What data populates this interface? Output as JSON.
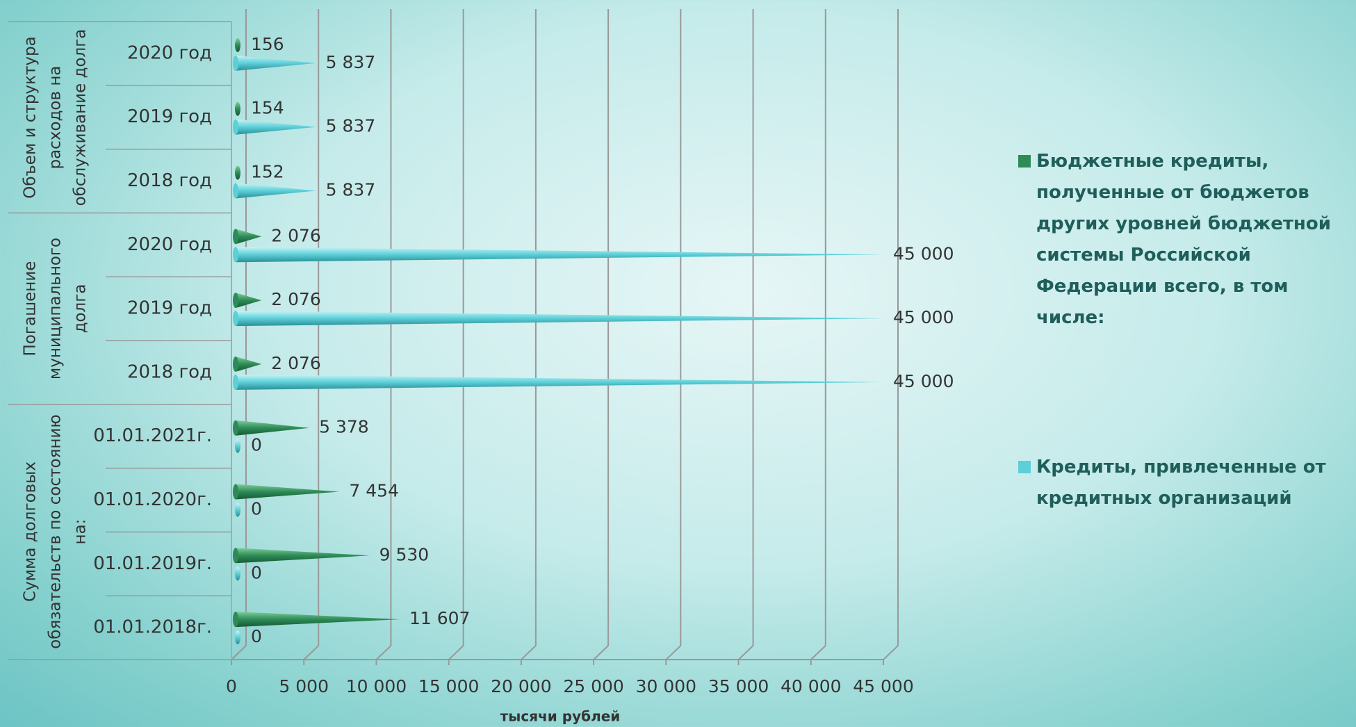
{
  "chart_data": {
    "type": "cone-bar",
    "x_label": "тысячи рублей",
    "groups": [
      {
        "label": "Сумма долговых обязательств по состоянию на:",
        "categories": [
          "01.01.2018г.",
          "01.01.2019г.",
          "01.01.2020г.",
          "01.01.2021г."
        ]
      },
      {
        "label": "Погашение муниципального долга",
        "categories": [
          "2018 год",
          "2019 год",
          "2020 год"
        ]
      },
      {
        "label": "Объем и структура расходов на обслуживание долга",
        "categories": [
          "2018 год",
          "2019 год",
          "2020 год"
        ]
      }
    ],
    "series": [
      {
        "name": "Бюджетные кредиты, полученные от бюджетов других уровней бюджетной системы Российской Федерации всего, в том числе:",
        "color": "#2e8b57",
        "values": [
          11607,
          9530,
          7454,
          5378,
          2076,
          2076,
          2076,
          152,
          154,
          156
        ],
        "value_labels": [
          "11 607",
          "9 530",
          "7 454",
          "5 378",
          "2 076",
          "2 076",
          "2 076",
          "152",
          "154",
          "156"
        ]
      },
      {
        "name": "Кредиты, привлеченные от кредитных организаций",
        "color": "#5ccfd8",
        "values": [
          0,
          0,
          0,
          0,
          45000,
          45000,
          45000,
          5837,
          5837,
          5837
        ],
        "value_labels": [
          "0",
          "0",
          "0",
          "0",
          "45 000",
          "45 000",
          "45 000",
          "5 837",
          "5 837",
          "5 837"
        ]
      }
    ],
    "xlim": [
      0,
      45000
    ],
    "xticks": [
      0,
      {
        "value": 5000,
        "label": "5 000"
      },
      {
        "value": 10000,
        "label": "10 000"
      },
      {
        "value": 15000,
        "label": "15 000"
      },
      {
        "value": 20000,
        "label": "20 000"
      },
      {
        "value": 25000,
        "label": "25 000"
      },
      {
        "value": 30000,
        "label": "30 000"
      },
      {
        "value": 35000,
        "label": "35 000"
      },
      {
        "value": 40000,
        "label": "40 000"
      },
      {
        "value": 45000,
        "label": "45 000"
      }
    ],
    "grid": true
  }
}
